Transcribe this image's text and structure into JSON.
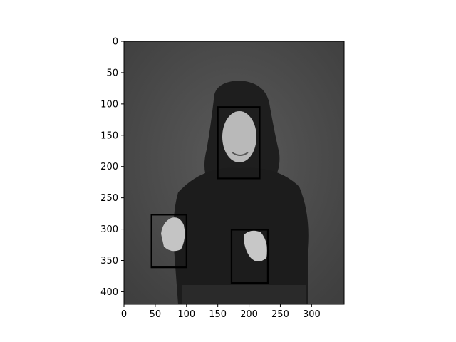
{
  "figure": {
    "image_description_hint": "grayscale photo of a person signing",
    "axes": {
      "x_ticks": [
        0,
        50,
        100,
        150,
        200,
        250,
        300
      ],
      "y_ticks": [
        0,
        50,
        100,
        150,
        200,
        250,
        300,
        350,
        400
      ],
      "x_range": [
        0,
        352
      ],
      "y_range": [
        0,
        420
      ],
      "y_inverted": true
    },
    "boxes": [
      {
        "label": "face",
        "x0": 150,
        "y0": 105,
        "x1": 217,
        "y1": 219
      },
      {
        "label": "left-hand",
        "x0": 44,
        "y0": 277,
        "x1": 100,
        "y1": 361
      },
      {
        "label": "right-hand",
        "x0": 172,
        "y0": 301,
        "x1": 230,
        "y1": 386
      }
    ],
    "box_color": "#000000",
    "background_color": "#4a4a4a"
  }
}
